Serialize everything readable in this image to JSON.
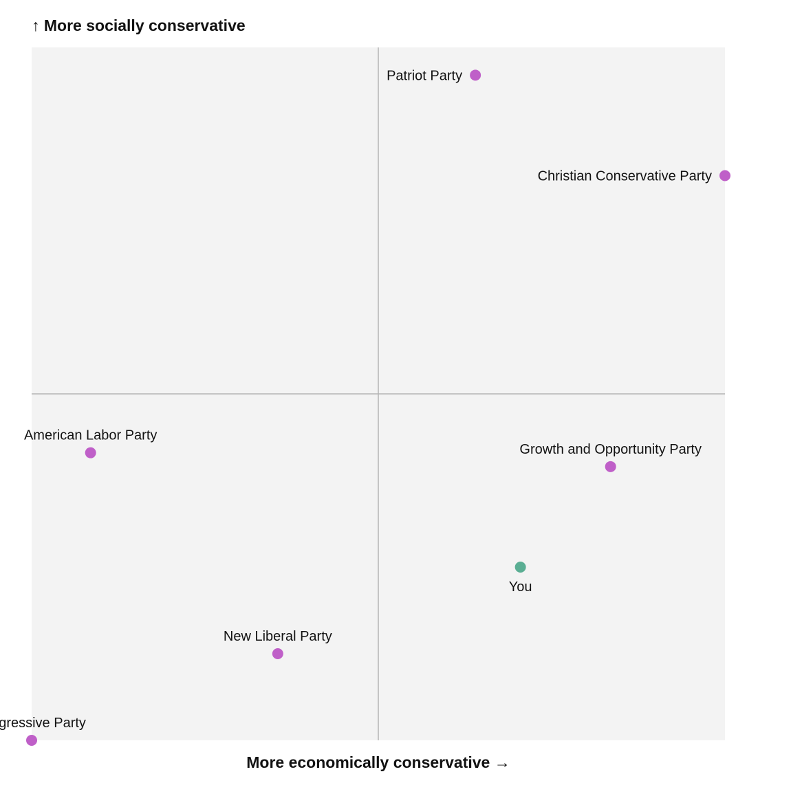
{
  "chart_data": {
    "type": "scatter",
    "y_axis_title": "↑ More socially conservative",
    "x_axis_title": "More economically conservative →",
    "xlim": [
      -1,
      1
    ],
    "ylim": [
      -1,
      1
    ],
    "grid": false,
    "quadrant_lines": {
      "x": 0,
      "y": 0
    },
    "colors": {
      "party": "#bf5fc8",
      "you": "#5aae93",
      "plot_bg": "#f3f3f3",
      "axis_line": "#b4b4b4"
    },
    "points": [
      {
        "label": "Patriot Party",
        "x": 0.28,
        "y": 0.92,
        "kind": "party",
        "label_pos": "left"
      },
      {
        "label": "Christian Conservative Party",
        "x": 1.0,
        "y": 0.63,
        "kind": "party",
        "label_pos": "left"
      },
      {
        "label": "American Labor Party",
        "x": -0.83,
        "y": -0.17,
        "kind": "party",
        "label_pos": "above"
      },
      {
        "label": "Growth and Opportunity Party",
        "x": 0.67,
        "y": -0.21,
        "kind": "party",
        "label_pos": "above"
      },
      {
        "label": "You",
        "x": 0.41,
        "y": -0.5,
        "kind": "you",
        "label_pos": "below"
      },
      {
        "label": "New Liberal Party",
        "x": -0.29,
        "y": -0.75,
        "kind": "party",
        "label_pos": "above"
      },
      {
        "label": "Progressive Party",
        "x": -1.0,
        "y": -1.0,
        "kind": "party",
        "label_pos": "above"
      }
    ]
  }
}
